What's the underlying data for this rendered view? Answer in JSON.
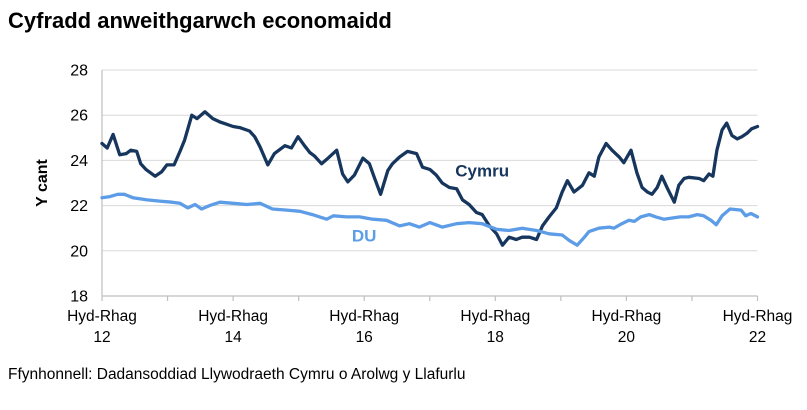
{
  "page": {
    "title": "Cyfradd anweithgarwch economaidd",
    "source_note": "Ffynhonnell: Dadansoddiad Llywodraeth Cymru o Arolwg y Llafurlu"
  },
  "chart_data": {
    "type": "line",
    "title": "Cyfradd anweithgarwch economaidd",
    "ylabel": "Y cant",
    "ylim": [
      18,
      28
    ],
    "yticks": [
      18,
      20,
      22,
      24,
      26,
      28
    ],
    "grid": "horizontal",
    "gridline_color": "#D9D9D9",
    "axis_color": "#BFBFBF",
    "xlim": [
      0,
      10
    ],
    "x_unit": "years from Hyd-Rhag 2012",
    "xtick_minor_every": 1,
    "xticks_labeled": [
      {
        "t": 0,
        "line1": "Hyd-Rhag",
        "line2": "12"
      },
      {
        "t": 2,
        "line1": "Hyd-Rhag",
        "line2": "14"
      },
      {
        "t": 4,
        "line1": "Hyd-Rhag",
        "line2": "16"
      },
      {
        "t": 6,
        "line1": "Hyd-Rhag",
        "line2": "18"
      },
      {
        "t": 8,
        "line1": "Hyd-Rhag",
        "line2": "20"
      },
      {
        "t": 10,
        "line1": "Hyd-Rhag",
        "line2": "22"
      }
    ],
    "series": [
      {
        "name": "Cymru",
        "color": "#17365D",
        "label": {
          "text": "Cymru",
          "t": 5.8,
          "v": 23.55
        },
        "points": [
          [
            0,
            24.75
          ],
          [
            0.08,
            24.55
          ],
          [
            0.17,
            25.15
          ],
          [
            0.27,
            24.25
          ],
          [
            0.37,
            24.3
          ],
          [
            0.44,
            24.45
          ],
          [
            0.53,
            24.4
          ],
          [
            0.59,
            23.85
          ],
          [
            0.67,
            23.6
          ],
          [
            0.81,
            23.3
          ],
          [
            0.91,
            23.5
          ],
          [
            0.99,
            23.8
          ],
          [
            1.1,
            23.8
          ],
          [
            1.19,
            24.4
          ],
          [
            1.26,
            24.9
          ],
          [
            1.37,
            26.0
          ],
          [
            1.45,
            25.85
          ],
          [
            1.57,
            26.15
          ],
          [
            1.69,
            25.85
          ],
          [
            1.8,
            25.7
          ],
          [
            1.9,
            25.6
          ],
          [
            2.0,
            25.5
          ],
          [
            2.1,
            25.45
          ],
          [
            2.25,
            25.3
          ],
          [
            2.33,
            25.05
          ],
          [
            2.41,
            24.6
          ],
          [
            2.53,
            23.8
          ],
          [
            2.63,
            24.3
          ],
          [
            2.79,
            24.65
          ],
          [
            2.89,
            24.55
          ],
          [
            2.99,
            25.05
          ],
          [
            3.09,
            24.65
          ],
          [
            3.17,
            24.35
          ],
          [
            3.24,
            24.2
          ],
          [
            3.35,
            23.85
          ],
          [
            3.43,
            24.05
          ],
          [
            3.58,
            24.45
          ],
          [
            3.67,
            23.4
          ],
          [
            3.75,
            23.05
          ],
          [
            3.85,
            23.35
          ],
          [
            3.98,
            24.1
          ],
          [
            4.08,
            23.85
          ],
          [
            4.16,
            23.2
          ],
          [
            4.25,
            22.5
          ],
          [
            4.36,
            23.55
          ],
          [
            4.43,
            23.85
          ],
          [
            4.54,
            24.15
          ],
          [
            4.66,
            24.4
          ],
          [
            4.8,
            24.3
          ],
          [
            4.89,
            23.7
          ],
          [
            5.0,
            23.6
          ],
          [
            5.1,
            23.35
          ],
          [
            5.19,
            23.0
          ],
          [
            5.3,
            22.8
          ],
          [
            5.41,
            22.75
          ],
          [
            5.5,
            22.25
          ],
          [
            5.6,
            22.05
          ],
          [
            5.71,
            21.7
          ],
          [
            5.8,
            21.6
          ],
          [
            5.91,
            21.1
          ],
          [
            6.02,
            20.75
          ],
          [
            6.11,
            20.25
          ],
          [
            6.21,
            20.6
          ],
          [
            6.32,
            20.5
          ],
          [
            6.41,
            20.6
          ],
          [
            6.52,
            20.6
          ],
          [
            6.63,
            20.5
          ],
          [
            6.72,
            21.1
          ],
          [
            6.82,
            21.5
          ],
          [
            6.93,
            21.9
          ],
          [
            7.02,
            22.6
          ],
          [
            7.1,
            23.1
          ],
          [
            7.2,
            22.6
          ],
          [
            7.33,
            22.9
          ],
          [
            7.43,
            23.45
          ],
          [
            7.51,
            23.3
          ],
          [
            7.58,
            24.15
          ],
          [
            7.69,
            24.75
          ],
          [
            7.78,
            24.45
          ],
          [
            7.89,
            24.15
          ],
          [
            7.96,
            23.9
          ],
          [
            8.07,
            24.45
          ],
          [
            8.16,
            23.45
          ],
          [
            8.24,
            22.8
          ],
          [
            8.32,
            22.6
          ],
          [
            8.39,
            22.5
          ],
          [
            8.47,
            22.8
          ],
          [
            8.54,
            23.3
          ],
          [
            8.62,
            22.8
          ],
          [
            8.73,
            22.15
          ],
          [
            8.8,
            22.9
          ],
          [
            8.88,
            23.2
          ],
          [
            8.95,
            23.25
          ],
          [
            9.11,
            23.2
          ],
          [
            9.18,
            23.1
          ],
          [
            9.26,
            23.4
          ],
          [
            9.32,
            23.3
          ],
          [
            9.38,
            24.45
          ],
          [
            9.46,
            25.35
          ],
          [
            9.53,
            25.65
          ],
          [
            9.61,
            25.1
          ],
          [
            9.69,
            24.95
          ],
          [
            9.76,
            25.05
          ],
          [
            9.84,
            25.2
          ],
          [
            9.91,
            25.4
          ],
          [
            10,
            25.5
          ]
        ]
      },
      {
        "name": "DU",
        "color": "#5D9CE6",
        "label": {
          "text": "DU",
          "t": 4.0,
          "v": 20.68
        },
        "points": [
          [
            0,
            22.35
          ],
          [
            0.12,
            22.4
          ],
          [
            0.24,
            22.5
          ],
          [
            0.34,
            22.5
          ],
          [
            0.47,
            22.35
          ],
          [
            0.69,
            22.25
          ],
          [
            0.88,
            22.2
          ],
          [
            1.07,
            22.15
          ],
          [
            1.19,
            22.1
          ],
          [
            1.31,
            21.9
          ],
          [
            1.42,
            22.05
          ],
          [
            1.52,
            21.85
          ],
          [
            1.64,
            22.0
          ],
          [
            1.8,
            22.15
          ],
          [
            2.0,
            22.1
          ],
          [
            2.21,
            22.05
          ],
          [
            2.41,
            22.1
          ],
          [
            2.6,
            21.85
          ],
          [
            2.82,
            21.8
          ],
          [
            3.02,
            21.75
          ],
          [
            3.21,
            21.6
          ],
          [
            3.32,
            21.5
          ],
          [
            3.43,
            21.4
          ],
          [
            3.53,
            21.55
          ],
          [
            3.73,
            21.5
          ],
          [
            3.93,
            21.5
          ],
          [
            4.13,
            21.4
          ],
          [
            4.34,
            21.35
          ],
          [
            4.54,
            21.1
          ],
          [
            4.69,
            21.2
          ],
          [
            4.84,
            21.05
          ],
          [
            5.0,
            21.25
          ],
          [
            5.19,
            21.05
          ],
          [
            5.41,
            21.2
          ],
          [
            5.6,
            21.25
          ],
          [
            5.8,
            21.2
          ],
          [
            6.02,
            20.95
          ],
          [
            6.21,
            20.9
          ],
          [
            6.41,
            21.0
          ],
          [
            6.63,
            20.9
          ],
          [
            6.82,
            20.75
          ],
          [
            7.02,
            20.7
          ],
          [
            7.13,
            20.45
          ],
          [
            7.25,
            20.25
          ],
          [
            7.36,
            20.6
          ],
          [
            7.43,
            20.85
          ],
          [
            7.58,
            21.0
          ],
          [
            7.74,
            21.05
          ],
          [
            7.81,
            21.0
          ],
          [
            7.93,
            21.2
          ],
          [
            8.04,
            21.35
          ],
          [
            8.12,
            21.3
          ],
          [
            8.22,
            21.5
          ],
          [
            8.35,
            21.6
          ],
          [
            8.45,
            21.5
          ],
          [
            8.57,
            21.4
          ],
          [
            8.7,
            21.45
          ],
          [
            8.82,
            21.5
          ],
          [
            8.95,
            21.5
          ],
          [
            9.08,
            21.6
          ],
          [
            9.18,
            21.55
          ],
          [
            9.29,
            21.35
          ],
          [
            9.37,
            21.15
          ],
          [
            9.46,
            21.55
          ],
          [
            9.58,
            21.85
          ],
          [
            9.75,
            21.8
          ],
          [
            9.82,
            21.55
          ],
          [
            9.9,
            21.65
          ],
          [
            10,
            21.5
          ]
        ]
      }
    ]
  }
}
